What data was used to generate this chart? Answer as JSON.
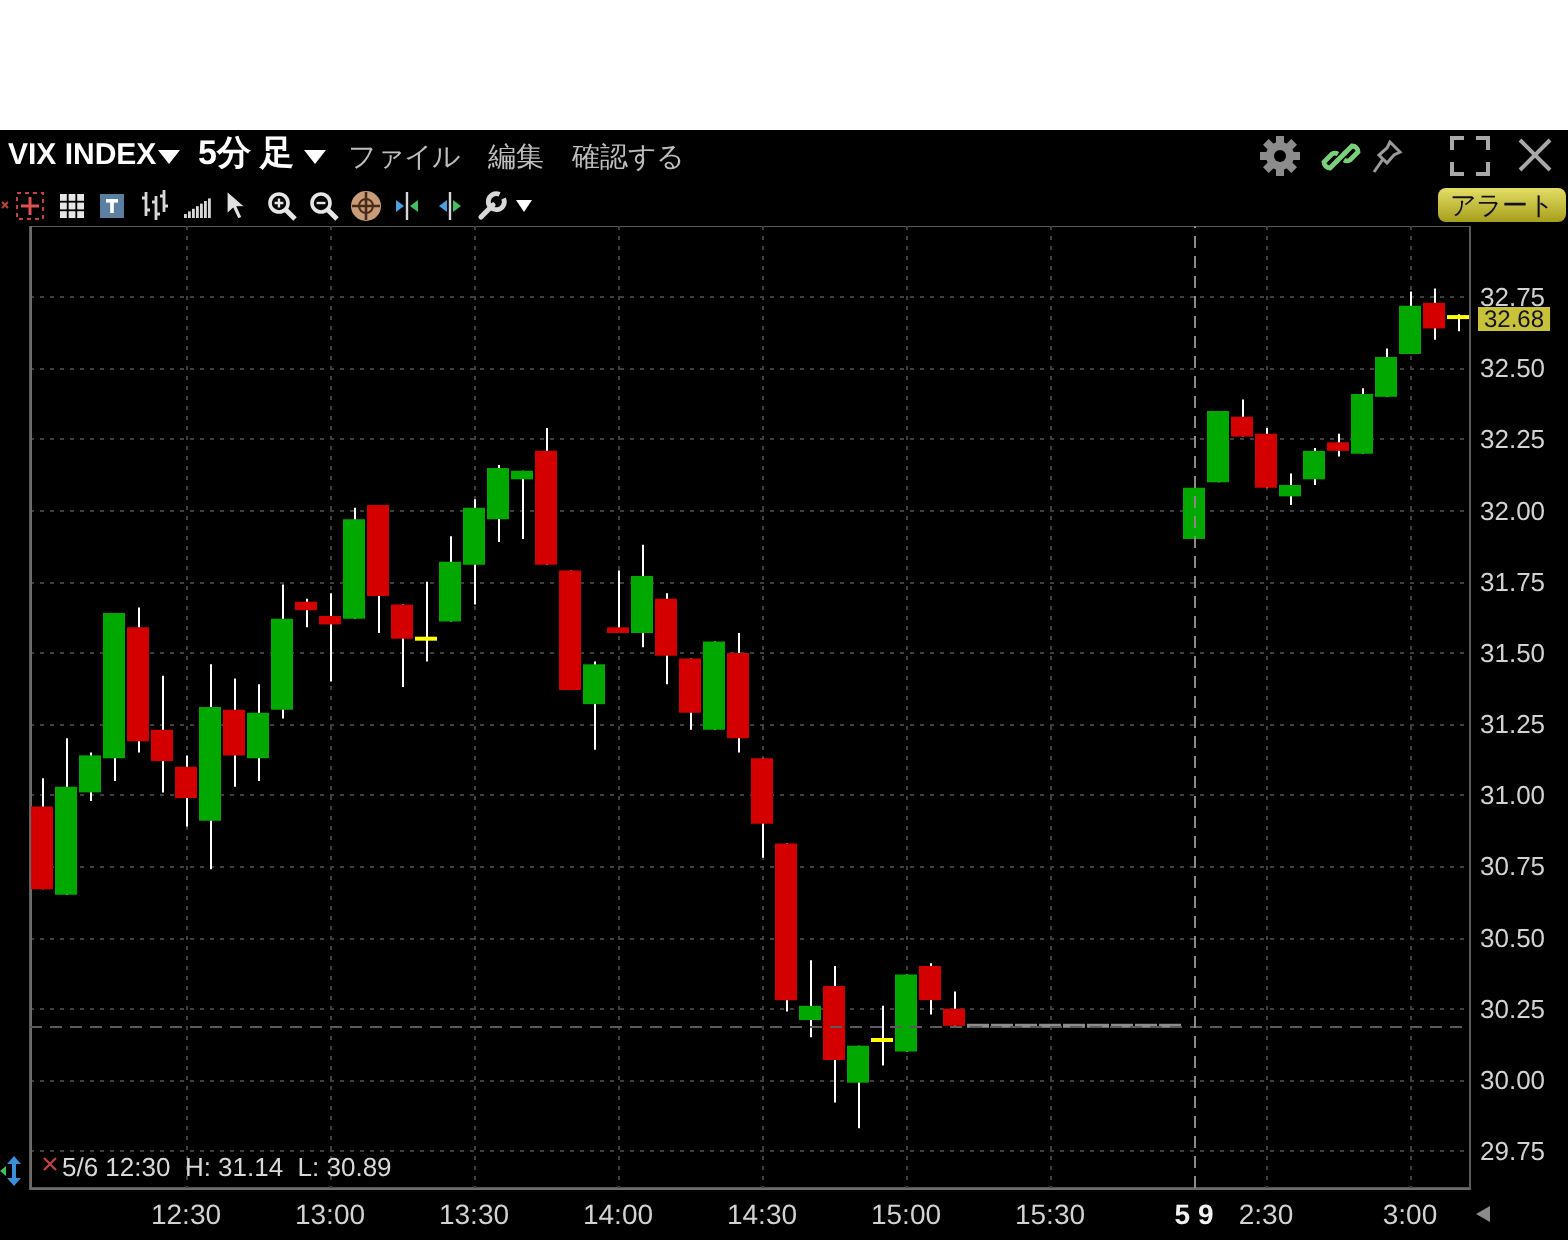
{
  "chart_data": {
    "type": "candlestick",
    "title": "VIX INDEX",
    "subtitle": "5分 足",
    "categories": [
      null,
      null,
      null,
      null,
      null,
      null,
      "12:30",
      null,
      null,
      null,
      null,
      null,
      "13:00",
      null,
      null,
      null,
      null,
      null,
      "13:30",
      null,
      null,
      null,
      null,
      null,
      "14:00",
      null,
      null,
      null,
      null,
      null,
      "14:30",
      null,
      null,
      null,
      null,
      null,
      "15:00",
      null,
      null,
      null,
      null,
      null,
      "15:30",
      null,
      null,
      null,
      null,
      null,
      "5 9",
      null,
      null,
      "2:30",
      null,
      null,
      null,
      null,
      null,
      "3:00",
      null,
      null
    ],
    "ohlc": [
      [
        30.96,
        31.06,
        30.67,
        30.67
      ],
      [
        30.65,
        31.2,
        30.65,
        31.03
      ],
      [
        31.01,
        31.15,
        30.98,
        31.14
      ],
      [
        31.13,
        31.64,
        31.05,
        31.64
      ],
      [
        31.59,
        31.66,
        31.15,
        31.19
      ],
      [
        31.23,
        31.42,
        31.01,
        31.12
      ],
      [
        31.1,
        31.14,
        30.89,
        30.99
      ],
      [
        30.91,
        31.46,
        30.74,
        31.31
      ],
      [
        31.3,
        31.41,
        31.03,
        31.14
      ],
      [
        31.13,
        31.39,
        31.05,
        31.29
      ],
      [
        31.3,
        31.74,
        31.27,
        31.62
      ],
      [
        31.68,
        31.69,
        31.59,
        31.65
      ],
      [
        31.63,
        31.71,
        31.4,
        31.6
      ],
      [
        31.62,
        32.01,
        31.62,
        31.97
      ],
      [
        32.02,
        32.02,
        31.57,
        31.7
      ],
      [
        31.67,
        31.67,
        31.38,
        31.55
      ],
      [
        31.55,
        31.75,
        31.47,
        31.55
      ],
      [
        31.61,
        31.91,
        31.61,
        31.82
      ],
      [
        31.81,
        32.04,
        31.67,
        32.01
      ],
      [
        31.97,
        32.16,
        31.89,
        32.15
      ],
      [
        32.11,
        32.14,
        31.9,
        32.14
      ],
      [
        32.21,
        32.29,
        31.81,
        31.81
      ],
      [
        31.79,
        31.79,
        31.37,
        31.37
      ],
      [
        31.32,
        31.47,
        31.16,
        31.46
      ],
      [
        31.59,
        31.79,
        31.57,
        31.57
      ],
      [
        31.57,
        31.88,
        31.52,
        31.77
      ],
      [
        31.69,
        31.71,
        31.39,
        31.49
      ],
      [
        31.48,
        31.48,
        31.23,
        31.29
      ],
      [
        31.23,
        31.54,
        31.23,
        31.54
      ],
      [
        31.5,
        31.57,
        31.15,
        31.2
      ],
      [
        31.13,
        31.13,
        30.78,
        30.9
      ],
      [
        30.83,
        30.83,
        30.24,
        30.28
      ],
      [
        30.21,
        30.42,
        30.15,
        30.26
      ],
      [
        30.33,
        30.4,
        29.92,
        30.07
      ],
      [
        29.99,
        30.12,
        29.83,
        30.12
      ],
      [
        30.14,
        30.26,
        30.05,
        30.14
      ],
      [
        30.1,
        30.37,
        30.1,
        30.37
      ],
      [
        30.4,
        30.41,
        30.23,
        30.28
      ],
      [
        30.25,
        30.31,
        30.19,
        30.19
      ],
      [
        30.19,
        30.19,
        30.19,
        30.19
      ],
      [
        30.19,
        30.19,
        30.19,
        30.19
      ],
      [
        30.19,
        30.19,
        30.19,
        30.19
      ],
      [
        30.19,
        30.19,
        30.19,
        30.19
      ],
      [
        30.19,
        30.19,
        30.19,
        30.19
      ],
      [
        30.19,
        30.19,
        30.19,
        30.19
      ],
      [
        30.19,
        30.19,
        30.19,
        30.19
      ],
      [
        30.19,
        30.19,
        30.19,
        30.19
      ],
      [
        30.19,
        30.19,
        30.19,
        30.19
      ],
      [
        31.9,
        32.08,
        31.9,
        32.08
      ],
      [
        32.1,
        32.35,
        32.1,
        32.35
      ],
      [
        32.33,
        32.39,
        32.26,
        32.26
      ],
      [
        32.27,
        32.29,
        32.08,
        32.08
      ],
      [
        32.05,
        32.13,
        32.02,
        32.09
      ],
      [
        32.11,
        32.22,
        32.09,
        32.21
      ],
      [
        32.24,
        32.27,
        32.19,
        32.21
      ],
      [
        32.2,
        32.43,
        32.2,
        32.41
      ],
      [
        32.4,
        32.57,
        32.4,
        32.54
      ],
      [
        32.55,
        32.77,
        32.55,
        32.72
      ],
      [
        32.73,
        32.78,
        32.6,
        32.64
      ],
      [
        32.68,
        32.69,
        32.63,
        32.68
      ]
    ],
    "colors": [
      "#d40000",
      "#00a800",
      "#00a800",
      "#00a800",
      "#d40000",
      "#d40000",
      "#d40000",
      "#00a800",
      "#d40000",
      "#00a800",
      "#00a800",
      "#d40000",
      "#d40000",
      "#00a800",
      "#d40000",
      "#d40000",
      "#ffff00",
      "#00a800",
      "#00a800",
      "#00a800",
      "#00a800",
      "#d40000",
      "#d40000",
      "#00a800",
      "#d40000",
      "#00a800",
      "#d40000",
      "#d40000",
      "#00a800",
      "#d40000",
      "#d40000",
      "#d40000",
      "#00a800",
      "#d40000",
      "#00a800",
      "#ffff00",
      "#00a800",
      "#d40000",
      "#d40000",
      "#8c8c8c",
      "#8c8c8c",
      "#8c8c8c",
      "#8c8c8c",
      "#8c8c8c",
      "#8c8c8c",
      "#8c8c8c",
      "#8c8c8c",
      "#8c8c8c",
      "#00a800",
      "#00a800",
      "#d40000",
      "#d40000",
      "#00a800",
      "#00a800",
      "#d40000",
      "#00a800",
      "#00a800",
      "#00a800",
      "#d40000",
      "#ffff00"
    ],
    "ylim": [
      29.62,
      33.0
    ],
    "yticks": [
      29.75,
      {
        "value": 30,
        "label": "30.00"
      },
      30.25,
      {
        "value": 30.5,
        "label": "30.50"
      },
      30.75,
      {
        "value": 31,
        "label": "31.00"
      },
      31.25,
      {
        "value": 31.5,
        "label": "31.50"
      },
      31.75,
      {
        "value": 32,
        "label": "32.00"
      },
      32.25,
      {
        "value": 32.5,
        "label": "32.50"
      },
      32.75
    ],
    "grid": true,
    "ref_lines": [
      {
        "axis": "y",
        "value": 30.19,
        "color": "#5a5a5a",
        "line_style": "dashed"
      },
      {
        "axis": "x",
        "value": "5 9",
        "color": "#8a8a8a",
        "line_style": "dashed"
      }
    ],
    "annotations": [
      "ファイル",
      "編集",
      "確認する",
      "アラート",
      "5/6 12:30  H: 31.14  L: 30.89",
      "32.68"
    ]
  }
}
